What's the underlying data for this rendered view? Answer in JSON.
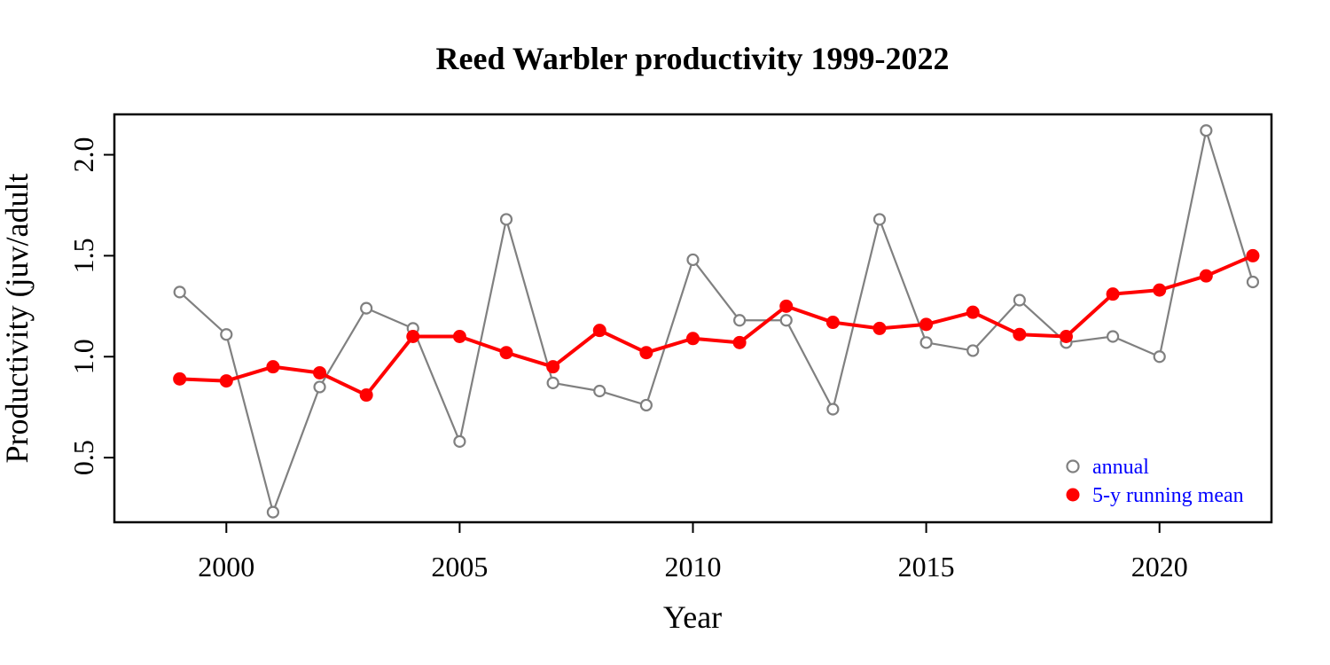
{
  "chart_data": {
    "type": "line",
    "title": "Reed Warbler productivity 1999-2022",
    "xlabel": "Year",
    "ylabel": "Productivity (juv/adult",
    "xlim": [
      1997.6,
      2022.4
    ],
    "ylim": [
      0.18,
      2.2
    ],
    "xticks": [
      2000,
      2005,
      2010,
      2015,
      2020
    ],
    "yticks": [
      0.5,
      1.0,
      1.5,
      2.0
    ],
    "ytick_labels": [
      "0.5",
      "1.0",
      "1.5",
      "2.0"
    ],
    "grid": false,
    "legend_position": "bottom-right",
    "x": [
      1999,
      2000,
      2001,
      2002,
      2003,
      2004,
      2005,
      2006,
      2007,
      2008,
      2009,
      2010,
      2011,
      2012,
      2013,
      2014,
      2015,
      2016,
      2017,
      2018,
      2019,
      2020,
      2021,
      2022
    ],
    "series": [
      {
        "name": "annual",
        "color": "#808080",
        "marker": "open-circle",
        "values": [
          1.32,
          1.11,
          0.23,
          0.85,
          1.24,
          1.14,
          0.58,
          1.68,
          0.87,
          0.83,
          0.76,
          1.48,
          1.18,
          1.18,
          0.74,
          1.68,
          1.07,
          1.03,
          1.28,
          1.07,
          1.1,
          1.0,
          2.12,
          1.37
        ]
      },
      {
        "name": "5-y running mean",
        "color": "#ff0000",
        "marker": "filled-circle",
        "values": [
          0.89,
          0.88,
          0.95,
          0.92,
          0.81,
          1.1,
          1.1,
          1.02,
          0.95,
          1.13,
          1.02,
          1.09,
          1.07,
          1.25,
          1.17,
          1.14,
          1.16,
          1.22,
          1.11,
          1.1,
          1.31,
          1.33,
          1.4,
          1.5
        ]
      }
    ],
    "legend_text_color": "#0000ff"
  }
}
